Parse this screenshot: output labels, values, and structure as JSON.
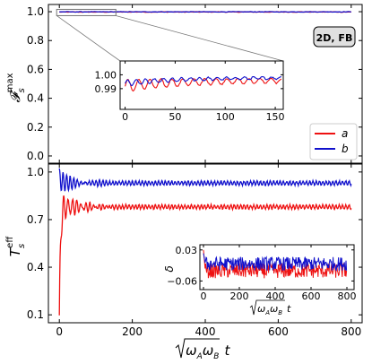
{
  "annotation": "2D, FB",
  "colors": {
    "a": "#ee1111",
    "b": "#1111cc",
    "zoom": "#777777"
  },
  "chart_data": [
    {
      "name": "top",
      "type": "line",
      "ylabel": "𝓕",
      "ylabel_sub": "s",
      "ylabel_sup": "max",
      "xlim": [
        -30,
        830
      ],
      "ylim": [
        -0.05,
        1.05
      ],
      "yticks": [
        0.0,
        0.2,
        0.4,
        0.6,
        0.8,
        1.0
      ],
      "ytick_labels": [
        "0.0",
        "0.2",
        "0.4",
        "0.6",
        "0.8",
        "1.0"
      ],
      "xticks": [
        0,
        200,
        400,
        600,
        800
      ],
      "series": [
        {
          "name": "a",
          "values_desc": "stays near 1.0",
          "level": 0.998
        },
        {
          "name": "b",
          "values_desc": "stays near 1.0",
          "level": 0.999
        }
      ],
      "legend": {
        "entries": [
          "a",
          "b"
        ],
        "placement": "bottom-right"
      },
      "zoom_box": {
        "x": [
          0,
          155
        ],
        "y": [
          0.985,
          1.01
        ]
      }
    },
    {
      "name": "top-inset",
      "type": "line",
      "xlim": [
        -5,
        158
      ],
      "ylim": [
        0.975,
        1.01
      ],
      "xticks": [
        0,
        50,
        100,
        150
      ],
      "xtick_labels": [
        "0",
        "50",
        "100",
        "150"
      ],
      "yticks": [
        0.99,
        1.0
      ],
      "ytick_labels": [
        "0.99",
        "1.00"
      ]
    },
    {
      "name": "bottom",
      "type": "line",
      "xlabel": "√(ω_A ω_B) t",
      "xlabel_root": "ω",
      "xlabel_t": "t",
      "ylabel": "T",
      "ylabel_sub": "s",
      "ylabel_sup": "eff",
      "xlim": [
        -30,
        830
      ],
      "ylim": [
        0.05,
        1.05
      ],
      "xticks": [
        0,
        200,
        400,
        600,
        800
      ],
      "xtick_labels": [
        "0",
        "200",
        "400",
        "600",
        "800"
      ],
      "yticks": [
        0.1,
        0.4,
        0.7,
        1.0
      ],
      "ytick_labels": [
        "0.1",
        "0.4",
        "0.7",
        "1.0"
      ],
      "series": [
        {
          "name": "a",
          "start": 0.1,
          "peak": 0.86,
          "steady": 0.78,
          "osc_amp": 0.012
        },
        {
          "name": "b",
          "start": 0.96,
          "peak": 1.01,
          "steady": 0.93,
          "osc_amp": 0.012
        }
      ]
    },
    {
      "name": "bottom-inset",
      "type": "line",
      "ylabel": "δ",
      "xlim": [
        -20,
        840
      ],
      "ylim": [
        -0.085,
        0.045
      ],
      "xticks": [
        0,
        200,
        400,
        600,
        800
      ],
      "xtick_labels": [
        "0",
        "200",
        "400",
        "600",
        "800"
      ],
      "yticks": [
        -0.06,
        0.03
      ],
      "ytick_labels": [
        "−0.06",
        "0.03"
      ],
      "series": [
        {
          "name": "a",
          "mean": -0.03,
          "noise": 0.022,
          "start": 0.03
        },
        {
          "name": "b",
          "mean": -0.01,
          "noise": 0.02,
          "start": 0.02
        }
      ]
    }
  ]
}
